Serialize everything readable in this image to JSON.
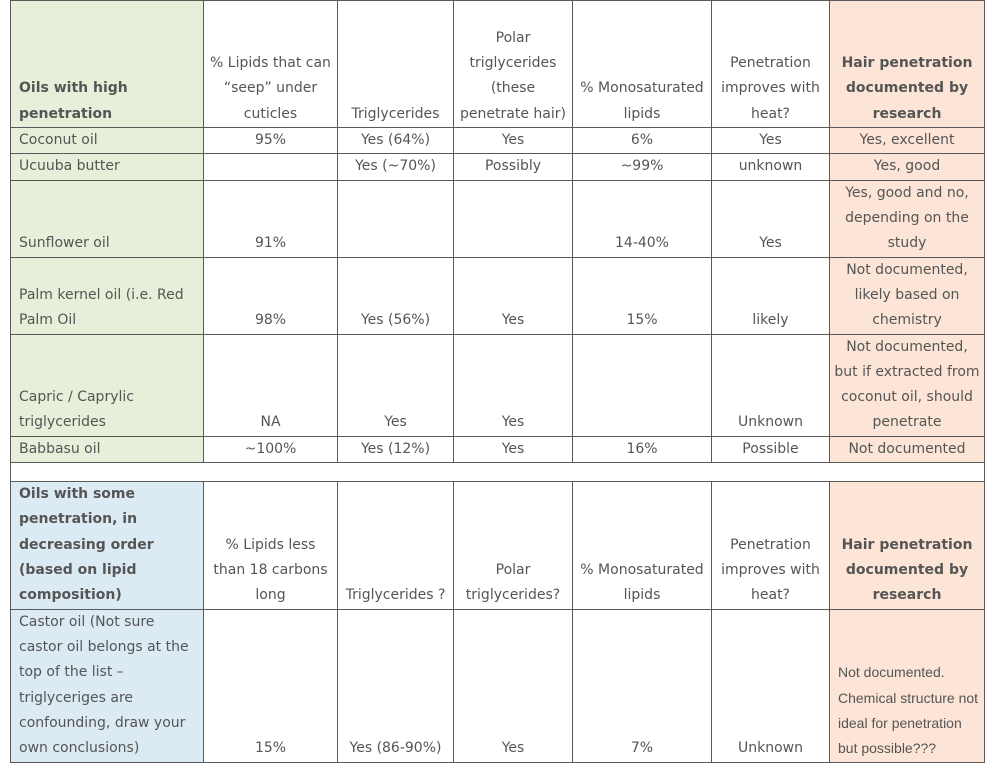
{
  "colors": {
    "green": "#e6efd9",
    "blue": "#dbeaf3",
    "peach": "#fce5d6",
    "border": "#5a5a5a",
    "text": "#555555"
  },
  "section1": {
    "header": {
      "c1": "Oils with high penetration",
      "c2": "% Lipids that can “seep” under cuticles",
      "c3": "Triglycerides",
      "c4": "Polar triglycerides (these penetrate hair)",
      "c5": "% Monosaturated lipids",
      "c6": "Penetration improves with heat?",
      "c7": "Hair penetration documented by research"
    },
    "rows": [
      {
        "c1": "Coconut oil",
        "c2": "95%",
        "c3": "Yes (64%)",
        "c4": "Yes",
        "c5": "6%",
        "c6": "Yes",
        "c7": "Yes, excellent"
      },
      {
        "c1": "Ucuuba butter",
        "c2": "",
        "c3": "Yes (~70%)",
        "c4": "Possibly",
        "c5": "~99%",
        "c6": "unknown",
        "c7": "Yes, good"
      },
      {
        "c1": "Sunflower oil",
        "c2": "91%",
        "c3": "",
        "c4": "",
        "c5": "14-40%",
        "c6": "Yes",
        "c7": "Yes, good and no, depending on the study"
      },
      {
        "c1": "Palm kernel oil (i.e. Red Palm Oil",
        "c2": "98%",
        "c3": "Yes (56%)",
        "c4": "Yes",
        "c5": "15%",
        "c6": "likely",
        "c7": "Not documented, likely based on chemistry"
      },
      {
        "c1": "Capric / Caprylic triglycerides",
        "c2": "NA",
        "c3": "Yes",
        "c4": "Yes",
        "c5": "",
        "c6": "Unknown",
        "c7": "Not documented, but if extracted from coconut oil, should penetrate"
      },
      {
        "c1": "Babbasu oil",
        "c2": "~100%",
        "c3": "Yes (12%)",
        "c4": "Yes",
        "c5": "16%",
        "c6": "Possible",
        "c7": "Not documented"
      }
    ]
  },
  "section2": {
    "header": {
      "c1": "Oils with some penetration, in decreasing order (based on lipid composition)",
      "c2": "% Lipids less than 18 carbons long",
      "c3": "Triglycerides ?",
      "c4": "Polar triglycerides?",
      "c5": "% Monosaturated lipids",
      "c6": "Penetration improves with heat?",
      "c7": "Hair penetration documented by research"
    },
    "rows": [
      {
        "c1_name": "Castor oil",
        "c1_note": " (Not sure castor oil belongs at the top of the list – triglyceriges are confounding, draw your own conclusions)",
        "c2": "15%",
        "c3": "Yes (86-90%)",
        "c4": "Yes",
        "c5": "7%",
        "c6": "Unknown",
        "c7": "Not documented. Chemical structure not ideal for penetration but possible???"
      }
    ]
  }
}
